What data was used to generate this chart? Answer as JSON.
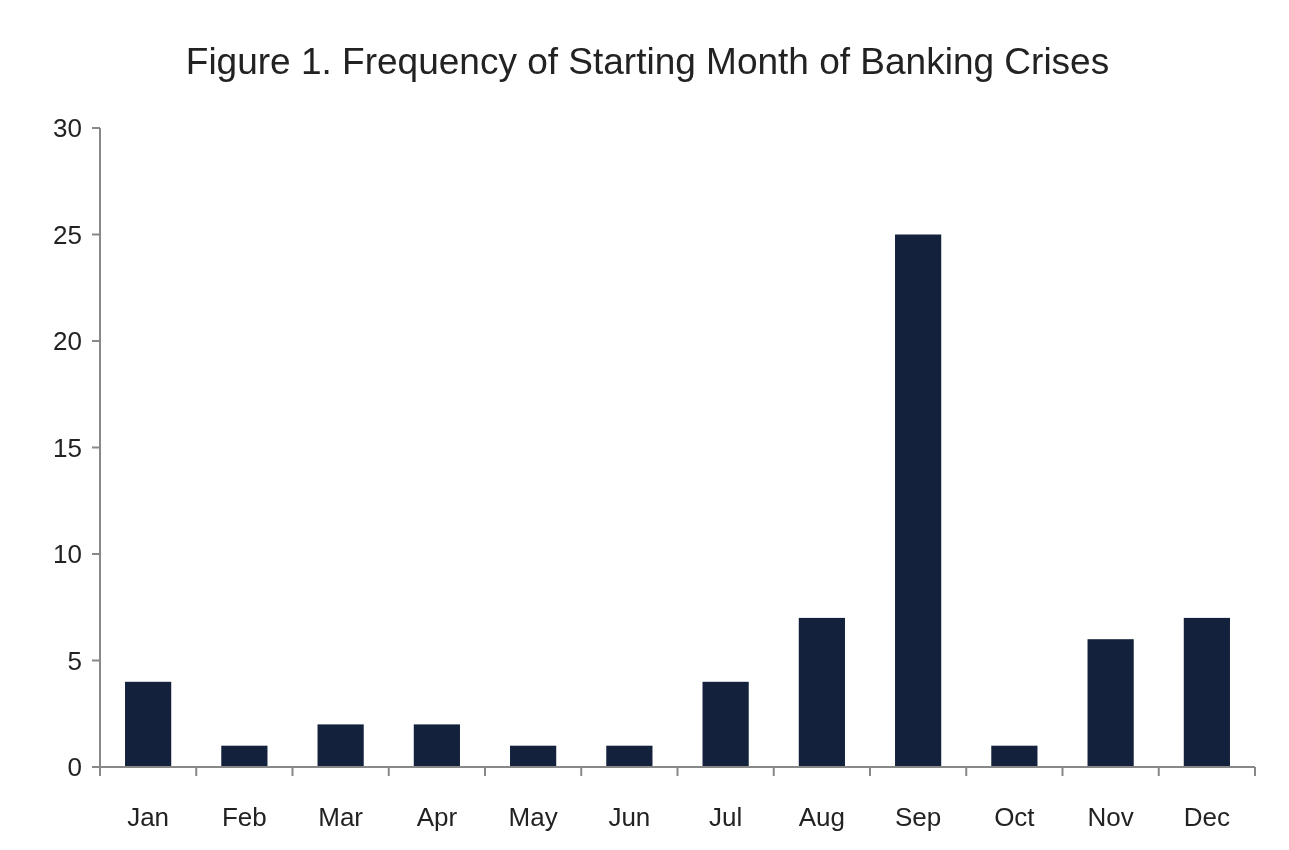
{
  "chart_data": {
    "type": "bar",
    "title": "Figure 1. Frequency of Starting Month of Banking Crises",
    "categories": [
      "Jan",
      "Feb",
      "Mar",
      "Apr",
      "May",
      "Jun",
      "Jul",
      "Aug",
      "Sep",
      "Oct",
      "Nov",
      "Dec"
    ],
    "values": [
      4,
      1,
      2,
      2,
      1,
      1,
      4,
      7,
      25,
      1,
      6,
      7
    ],
    "color": "#14213d",
    "ylim": [
      0,
      30
    ],
    "yticks": [
      0,
      5,
      10,
      15,
      20,
      25,
      30
    ],
    "grid": false
  }
}
